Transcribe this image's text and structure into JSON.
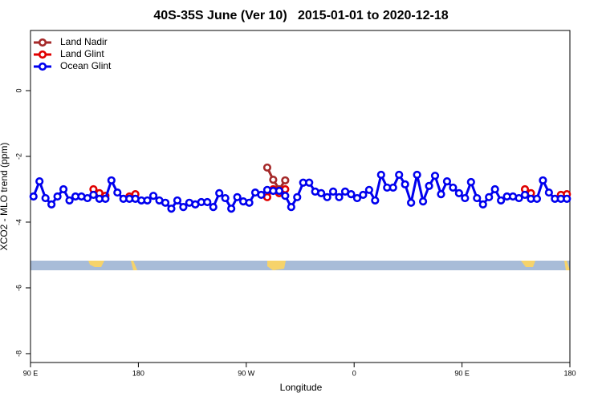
{
  "chart_data": {
    "type": "line",
    "title": "40S-35S June (Ver 10)   2015-01-01 to 2020-12-18",
    "x_label": "Longitude",
    "y_label": "XCO2 - MLO trend (ppm)",
    "xlim": [
      90,
      540
    ],
    "ylim": [
      -8.27,
      1.83
    ],
    "xticks": [
      {
        "value": 90,
        "label": "90 E"
      },
      180,
      {
        "value": 270,
        "label": "90 W"
      },
      {
        "value": 360,
        "label": "0"
      },
      {
        "value": 450,
        "label": "90 E"
      },
      {
        "value": 540,
        "label": "180"
      }
    ],
    "yticks": [
      0,
      -2,
      -4,
      -6,
      -8
    ],
    "legend": "top-left",
    "x": [
      92.5,
      97.5,
      102.5,
      107.5,
      112.5,
      117.5,
      122.5,
      127.5,
      132.5,
      137.5,
      142.5,
      147.5,
      152.5,
      157.5,
      162.5,
      167.5,
      172.5,
      177.5,
      182.5,
      187.5,
      192.5,
      197.5,
      202.5,
      207.5,
      212.5,
      217.5,
      222.5,
      227.5,
      232.5,
      237.5,
      242.5,
      247.5,
      252.5,
      257.5,
      262.5,
      267.5,
      272.5,
      277.5,
      282.5,
      287.5,
      292.5,
      297.5,
      302.5,
      307.5,
      312.5,
      317.5,
      322.5,
      327.5,
      332.5,
      337.5,
      342.5,
      347.5,
      352.5,
      357.5,
      362.5,
      367.5,
      372.5,
      377.5,
      382.5,
      387.5,
      392.5,
      397.5,
      402.5,
      407.5,
      412.5,
      417.5,
      422.5,
      427.5,
      432.5,
      437.5,
      442.5,
      447.5,
      452.5,
      457.5,
      462.5,
      467.5,
      472.5,
      477.5,
      482.5,
      487.5,
      492.5,
      497.5,
      502.5,
      507.5,
      512.5,
      517.5,
      522.5,
      527.5,
      532.5,
      537.5
    ],
    "series": [
      {
        "name": "Land Nadir",
        "color": "#a52a2a",
        "values": [
          null,
          null,
          null,
          null,
          null,
          null,
          null,
          null,
          null,
          null,
          null,
          null,
          null,
          null,
          null,
          null,
          null,
          null,
          null,
          null,
          null,
          null,
          null,
          null,
          null,
          null,
          null,
          null,
          null,
          null,
          null,
          null,
          null,
          null,
          null,
          null,
          null,
          null,
          null,
          -2.34,
          -2.71,
          -3.0,
          -2.73,
          null,
          null,
          null,
          null,
          null,
          null,
          null,
          null,
          null,
          null,
          null,
          null,
          null,
          null,
          null,
          null,
          null,
          null,
          null,
          null,
          null,
          null,
          null,
          null,
          null,
          null,
          null,
          null,
          null,
          null,
          null,
          null,
          null,
          null,
          null,
          null,
          null,
          null,
          null,
          null,
          null,
          null,
          null,
          null,
          null,
          null,
          null
        ]
      },
      {
        "name": "Land Glint",
        "color": "#e00000",
        "values": [
          null,
          null,
          null,
          null,
          null,
          null,
          null,
          null,
          null,
          null,
          -3.0,
          -3.12,
          -3.2,
          null,
          null,
          null,
          -3.22,
          -3.15,
          null,
          null,
          null,
          null,
          null,
          null,
          null,
          null,
          null,
          null,
          null,
          null,
          null,
          null,
          null,
          null,
          null,
          null,
          null,
          null,
          null,
          -3.24,
          -3.0,
          -3.12,
          -3.0,
          null,
          null,
          null,
          null,
          null,
          null,
          null,
          null,
          null,
          null,
          null,
          null,
          null,
          null,
          null,
          null,
          null,
          null,
          null,
          null,
          null,
          null,
          null,
          null,
          null,
          null,
          null,
          null,
          null,
          null,
          null,
          null,
          null,
          null,
          null,
          null,
          null,
          null,
          null,
          -3.0,
          -3.12,
          null,
          null,
          null,
          null,
          -3.17,
          -3.15
        ]
      },
      {
        "name": "Ocean Glint",
        "color": "#0000ee",
        "values": [
          -3.22,
          -2.76,
          -3.27,
          -3.46,
          -3.22,
          -3.0,
          -3.34,
          -3.22,
          -3.22,
          -3.27,
          -3.17,
          -3.29,
          -3.29,
          -2.73,
          -3.1,
          -3.29,
          -3.29,
          -3.29,
          -3.34,
          -3.34,
          -3.2,
          -3.34,
          -3.41,
          -3.59,
          -3.34,
          -3.54,
          -3.41,
          -3.46,
          -3.39,
          -3.39,
          -3.54,
          -3.12,
          -3.27,
          -3.59,
          -3.24,
          -3.37,
          -3.41,
          -3.1,
          -3.17,
          -3.02,
          -3.05,
          -3.05,
          -3.2,
          -3.54,
          -3.24,
          -2.8,
          -2.8,
          -3.07,
          -3.12,
          -3.24,
          -3.07,
          -3.24,
          -3.07,
          -3.15,
          -3.27,
          -3.17,
          -3.02,
          -3.34,
          -2.56,
          -2.95,
          -2.95,
          -2.56,
          -2.85,
          -3.41,
          -2.56,
          -3.37,
          -2.9,
          -2.59,
          -3.15,
          -2.76,
          -2.95,
          -3.12,
          -3.27,
          -2.78,
          -3.27,
          -3.46,
          -3.24,
          -3.0,
          -3.34,
          -3.22,
          -3.22,
          -3.27,
          -3.17,
          -3.29,
          -3.29,
          -2.73,
          -3.1,
          -3.29,
          -3.29,
          -3.29
        ]
      }
    ]
  }
}
